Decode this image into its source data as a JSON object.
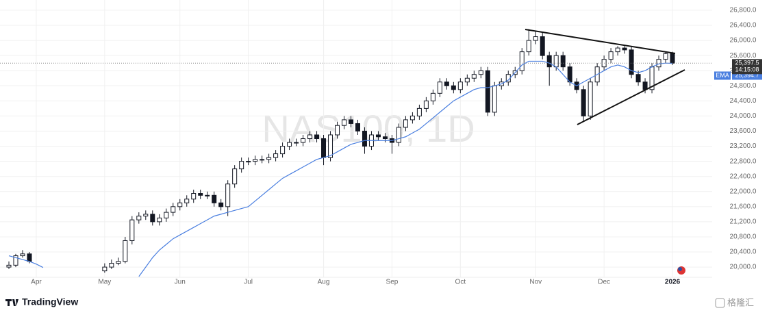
{
  "chart_data": {
    "type": "candlestick",
    "watermark": "NAS100, 1D",
    "brand": "TradingView",
    "corner_brand": "格隆汇",
    "categories": [
      null,
      null,
      null,
      null,
      "Apr",
      null,
      null,
      null,
      null,
      null,
      null,
      null,
      null,
      null,
      "May",
      null,
      null,
      null,
      null,
      null,
      null,
      null,
      null,
      null,
      null,
      "Jun",
      null,
      null,
      null,
      null,
      null,
      null,
      null,
      null,
      null,
      "Jul",
      null,
      null,
      null,
      null,
      null,
      null,
      null,
      null,
      null,
      null,
      "Aug",
      null,
      null,
      null,
      null,
      null,
      null,
      null,
      null,
      null,
      "Sep",
      null,
      null,
      null,
      null,
      null,
      null,
      null,
      null,
      null,
      "Oct",
      null,
      null,
      null,
      null,
      null,
      null,
      null,
      null,
      null,
      null,
      "Nov",
      null,
      null,
      null,
      null,
      null,
      null,
      null,
      null,
      null,
      "Dec",
      null,
      null,
      null,
      null,
      null,
      null,
      null,
      null,
      null,
      "2026",
      null,
      null
    ],
    "open": [
      20000,
      20050,
      20300,
      20350,
      null,
      null,
      null,
      null,
      null,
      null,
      null,
      null,
      null,
      null,
      19900,
      20000,
      20100,
      20150,
      20700,
      21250,
      21350,
      21400,
      21200,
      21300,
      21450,
      21600,
      21700,
      21800,
      21950,
      21900,
      21900,
      21700,
      21600,
      22200,
      22600,
      22800,
      22800,
      22850,
      22850,
      22900,
      23000,
      23200,
      23300,
      23300,
      23400,
      23500,
      23400,
      22900,
      23500,
      23750,
      23900,
      23800,
      23600,
      23200,
      23500,
      23450,
      23400,
      23300,
      23700,
      23900,
      24000,
      24200,
      24400,
      24600,
      24900,
      24800,
      24700,
      24900,
      25000,
      25100,
      25200,
      24100,
      24800,
      24900,
      25100,
      25200,
      25700,
      26000,
      26100,
      25600,
      25300,
      25600,
      25300,
      24900,
      24700,
      24000,
      24900,
      25300,
      25500,
      25700,
      25800,
      25750,
      25100,
      24900,
      24700,
      25300,
      25500,
      25650,
      null,
      null
    ],
    "high": [
      20150,
      20350,
      20450,
      20400,
      null,
      null,
      null,
      null,
      null,
      null,
      null,
      null,
      null,
      null,
      20100,
      20200,
      20250,
      20800,
      21350,
      21450,
      21500,
      21500,
      21400,
      21550,
      21700,
      21800,
      21900,
      22050,
      22050,
      22000,
      22000,
      21800,
      22300,
      22700,
      22900,
      22900,
      22950,
      22950,
      23000,
      23100,
      23300,
      23400,
      23400,
      23500,
      23600,
      23600,
      23500,
      23600,
      23850,
      24000,
      24000,
      23900,
      23700,
      23600,
      23600,
      23550,
      23500,
      23800,
      24000,
      24100,
      24300,
      24500,
      24700,
      25000,
      25000,
      24900,
      25000,
      25100,
      25200,
      25300,
      25300,
      24900,
      25000,
      25200,
      25300,
      25800,
      26300,
      26250,
      26200,
      25700,
      25700,
      25700,
      25400,
      25000,
      24800,
      25000,
      25400,
      25600,
      25800,
      25850,
      25850,
      25850,
      25200,
      25000,
      25400,
      25600,
      25700,
      25700,
      null,
      null
    ],
    "low": [
      19950,
      20000,
      20250,
      20100,
      null,
      null,
      null,
      null,
      null,
      null,
      null,
      null,
      null,
      null,
      19850,
      19950,
      20050,
      20100,
      20600,
      21150,
      21250,
      21100,
      21100,
      21200,
      21350,
      21500,
      21600,
      21700,
      21800,
      21800,
      21600,
      21500,
      21350,
      22100,
      22500,
      22700,
      22700,
      22750,
      22750,
      22800,
      22900,
      23100,
      23200,
      23200,
      23300,
      23300,
      22700,
      22800,
      23400,
      23650,
      23700,
      23500,
      23000,
      23100,
      23350,
      23300,
      23000,
      23200,
      23600,
      23800,
      23900,
      24100,
      24300,
      24500,
      24700,
      24600,
      24600,
      24800,
      24900,
      25000,
      24000,
      24000,
      24700,
      24800,
      25000,
      25100,
      25600,
      25900,
      25500,
      24800,
      25200,
      25200,
      24800,
      24600,
      23850,
      23900,
      24800,
      25200,
      25400,
      25600,
      25650,
      25000,
      24800,
      24600,
      24600,
      25200,
      25400,
      25350,
      null,
      null
    ],
    "close": [
      20050,
      20300,
      20350,
      20150,
      null,
      null,
      null,
      null,
      null,
      null,
      null,
      null,
      null,
      null,
      20000,
      20100,
      20150,
      20700,
      21250,
      21350,
      21400,
      21200,
      21300,
      21450,
      21600,
      21700,
      21800,
      21950,
      21900,
      21900,
      21700,
      21600,
      22200,
      22600,
      22800,
      22800,
      22850,
      22850,
      22900,
      23000,
      23200,
      23300,
      23300,
      23400,
      23500,
      23400,
      22900,
      23500,
      23750,
      23900,
      23800,
      23600,
      23200,
      23500,
      23450,
      23400,
      23300,
      23700,
      23900,
      24000,
      24200,
      24400,
      24600,
      24900,
      24800,
      24700,
      24900,
      25000,
      25100,
      25200,
      24100,
      24800,
      24900,
      25100,
      25200,
      25700,
      26000,
      26100,
      25600,
      25300,
      25600,
      25300,
      24900,
      24700,
      24000,
      24900,
      25300,
      25500,
      25700,
      25800,
      25750,
      25100,
      24900,
      24700,
      25300,
      25500,
      25650,
      25397.5,
      null,
      null
    ],
    "last_close_label": "25,397.5",
    "countdown": "14:15:08",
    "series": [
      {
        "name": "EMA",
        "color": "#4a7fe0",
        "last_label": "25,394.7",
        "values": [
          20300,
          20250,
          20200,
          20150,
          20080,
          19990,
          null,
          null,
          null,
          null,
          null,
          null,
          null,
          null,
          null,
          null,
          null,
          null,
          null,
          19750,
          20000,
          20250,
          20450,
          20600,
          20750,
          20850,
          20950,
          21050,
          21150,
          21250,
          21350,
          21400,
          21450,
          21500,
          21550,
          21600,
          21750,
          21900,
          22050,
          22200,
          22350,
          22450,
          22550,
          22650,
          22750,
          22850,
          22900,
          22950,
          23050,
          23150,
          23250,
          23300,
          23350,
          23350,
          23350,
          23350,
          23350,
          23400,
          23450,
          23550,
          23650,
          23800,
          23950,
          24100,
          24250,
          24400,
          24500,
          24600,
          24700,
          24750,
          24750,
          24800,
          24850,
          24950,
          25150,
          25350,
          25450,
          25450,
          25450,
          25400,
          25300,
          25100,
          24900,
          24800,
          24900,
          25000,
          25100,
          25200,
          25300,
          25350,
          25300,
          25200,
          25150,
          25200,
          25300,
          25380,
          25400,
          25394.7,
          null,
          null
        ]
      }
    ],
    "ylim": [
      19730,
      26980
    ],
    "yticks": [
      {
        "value": 20000,
        "label": "20,000.0"
      },
      {
        "value": 20400,
        "label": "20,400.0"
      },
      {
        "value": 20800,
        "label": "20,800.0"
      },
      {
        "value": 21200,
        "label": "21,200.0"
      },
      {
        "value": 21600,
        "label": "21,600.0"
      },
      {
        "value": 22000,
        "label": "22,000.0"
      },
      {
        "value": 22400,
        "label": "22,400.0"
      },
      {
        "value": 22800,
        "label": "22,800.0"
      },
      {
        "value": 23200,
        "label": "23,200.0"
      },
      {
        "value": 23600,
        "label": "23,600.0"
      },
      {
        "value": 24000,
        "label": "24,000.0"
      },
      {
        "value": 24400,
        "label": "24,400.0"
      },
      {
        "value": 24800,
        "label": "24,800.0"
      },
      {
        "value": 25200,
        "label": "25,200.0"
      },
      {
        "value": 25600,
        "label": "25,600.0"
      },
      {
        "value": 26000,
        "label": "26,000.0"
      },
      {
        "value": 26400,
        "label": "26,400.0"
      },
      {
        "value": 26800,
        "label": "26,800.0"
      }
    ],
    "grid": true
  }
}
